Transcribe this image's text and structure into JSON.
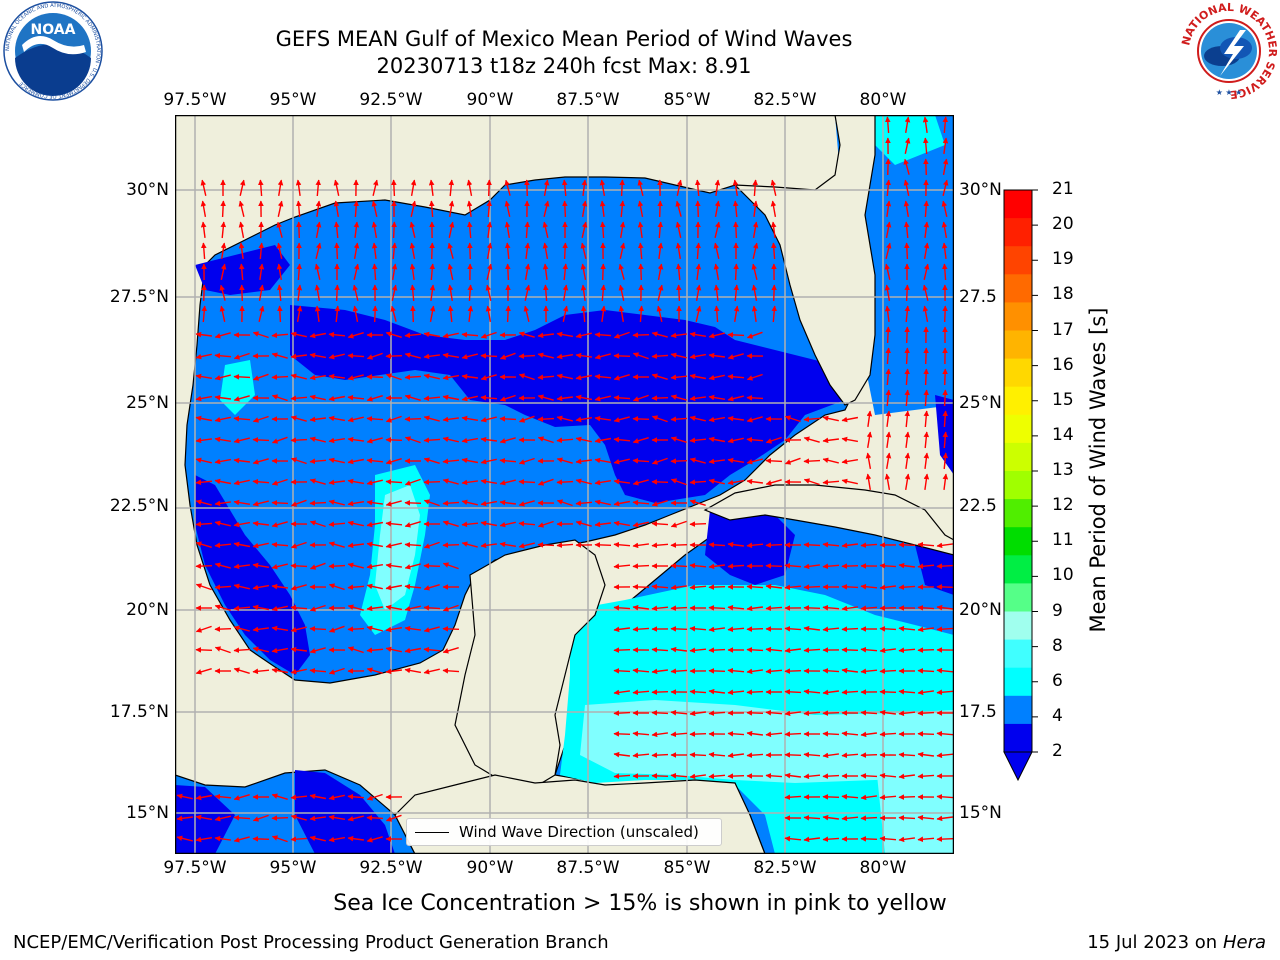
{
  "header": {
    "title_line1": "GEFS MEAN Gulf of Mexico Mean Period of Wind Waves",
    "title_line2": "20230713 t18z 240h fcst   Max: 8.91"
  },
  "logos": {
    "noaa_text": "NOAA",
    "noaa_ring_text": "NATIONAL OCEANIC AND ATMOSPHERIC ADMINISTRATION · U.S. DEPARTMENT OF COMMERCE",
    "nws_ring_text": "NATIONAL WEATHER SERVICE"
  },
  "map": {
    "lon_ticks": [
      "97.5°W",
      "95°W",
      "92.5°W",
      "90°W",
      "87.5°W",
      "85°W",
      "82.5°W",
      "80°W"
    ],
    "lat_ticks": [
      "30°N",
      "27.5°N",
      "25°N",
      "22.5°N",
      "20°N",
      "17.5°N",
      "15°N"
    ],
    "lat_ticks_right": [
      "30°N",
      "27.5",
      "25°N",
      "22.5",
      "20°N",
      "17.5",
      "15°N"
    ],
    "legend_label": "Wind Wave Direction (unscaled)",
    "colors": {
      "land": "#efefdc",
      "level_2_4": "#0080ff",
      "level_lt2": "#0000ee",
      "level_4_6": "#00ffff",
      "level_6_9": "#80ffff",
      "arrow": "#ff0000",
      "grid": "#b0b0b0"
    }
  },
  "colorbar": {
    "label": "Mean Period of Wind Waves [s]",
    "ticks": [
      "21",
      "20",
      "19",
      "18",
      "17",
      "16",
      "15",
      "14",
      "13",
      "12",
      "11",
      "10",
      "9",
      "8",
      "6",
      "4",
      "2"
    ],
    "colors": [
      "#ff0000",
      "#ff2000",
      "#ff4400",
      "#ff6a00",
      "#ff9000",
      "#ffb400",
      "#ffd800",
      "#fff000",
      "#eeff00",
      "#ccff00",
      "#a0ff00",
      "#50ee00",
      "#00dd00",
      "#00ee44",
      "#55ff88",
      "#a0ffee",
      "#40ffff",
      "#00ffff",
      "#0080ff",
      "#0000ee"
    ]
  },
  "footer": {
    "note": "Sea Ice Concentration > 15% is shown in pink to yellow",
    "left": "NCEP/EMC/Verification Post Processing Product Generation Branch",
    "right_date": "15 Jul 2023 on ",
    "right_host": "Hera"
  }
}
